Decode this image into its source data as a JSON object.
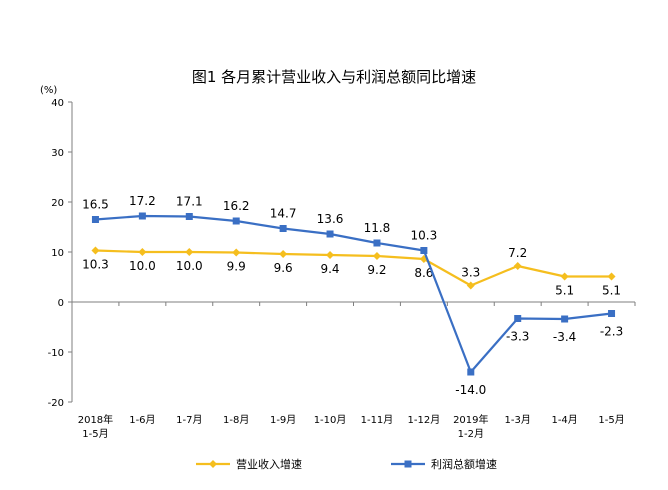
{
  "chart_data": {
    "type": "line",
    "title": "图1 各月累计营业收入与利润总额同比增速",
    "unit_label": "(%)",
    "x_labels": [
      [
        "2018年",
        "1-5月"
      ],
      [
        "1-6月"
      ],
      [
        "1-7月"
      ],
      [
        "1-8月"
      ],
      [
        "1-9月"
      ],
      [
        "1-10月"
      ],
      [
        "1-11月"
      ],
      [
        "1-12月"
      ],
      [
        "2019年",
        "1-2月"
      ],
      [
        "1-3月"
      ],
      [
        "1-4月"
      ],
      [
        "1-5月"
      ]
    ],
    "y_ticks": [
      "40",
      "30",
      "20",
      "10",
      "0",
      "-10",
      "-20"
    ],
    "ylim": [
      -20,
      40
    ],
    "series": [
      {
        "name": "营业收入增速",
        "color": "#f5be1e",
        "marker": "diamond",
        "values": [
          10.3,
          10.0,
          10.0,
          9.9,
          9.6,
          9.4,
          9.2,
          8.6,
          3.3,
          7.2,
          5.1,
          5.1
        ],
        "labels": [
          "10.3",
          "10.0",
          "10.0",
          "9.9",
          "9.6",
          "9.4",
          "9.2",
          "8.6",
          "3.3",
          "7.2",
          "5.1",
          "5.1"
        ]
      },
      {
        "name": "利润总额增速",
        "color": "#3a6fc4",
        "marker": "square",
        "values": [
          16.5,
          17.2,
          17.1,
          16.2,
          14.7,
          13.6,
          11.8,
          10.3,
          -14.0,
          -3.3,
          -3.4,
          -2.3
        ],
        "labels": [
          "16.5",
          "17.2",
          "17.1",
          "16.2",
          "14.7",
          "13.6",
          "11.8",
          "10.3",
          "-14.0",
          "-3.3",
          "-3.4",
          "-2.3"
        ]
      }
    ],
    "legend_position": "bottom",
    "grid": false
  }
}
